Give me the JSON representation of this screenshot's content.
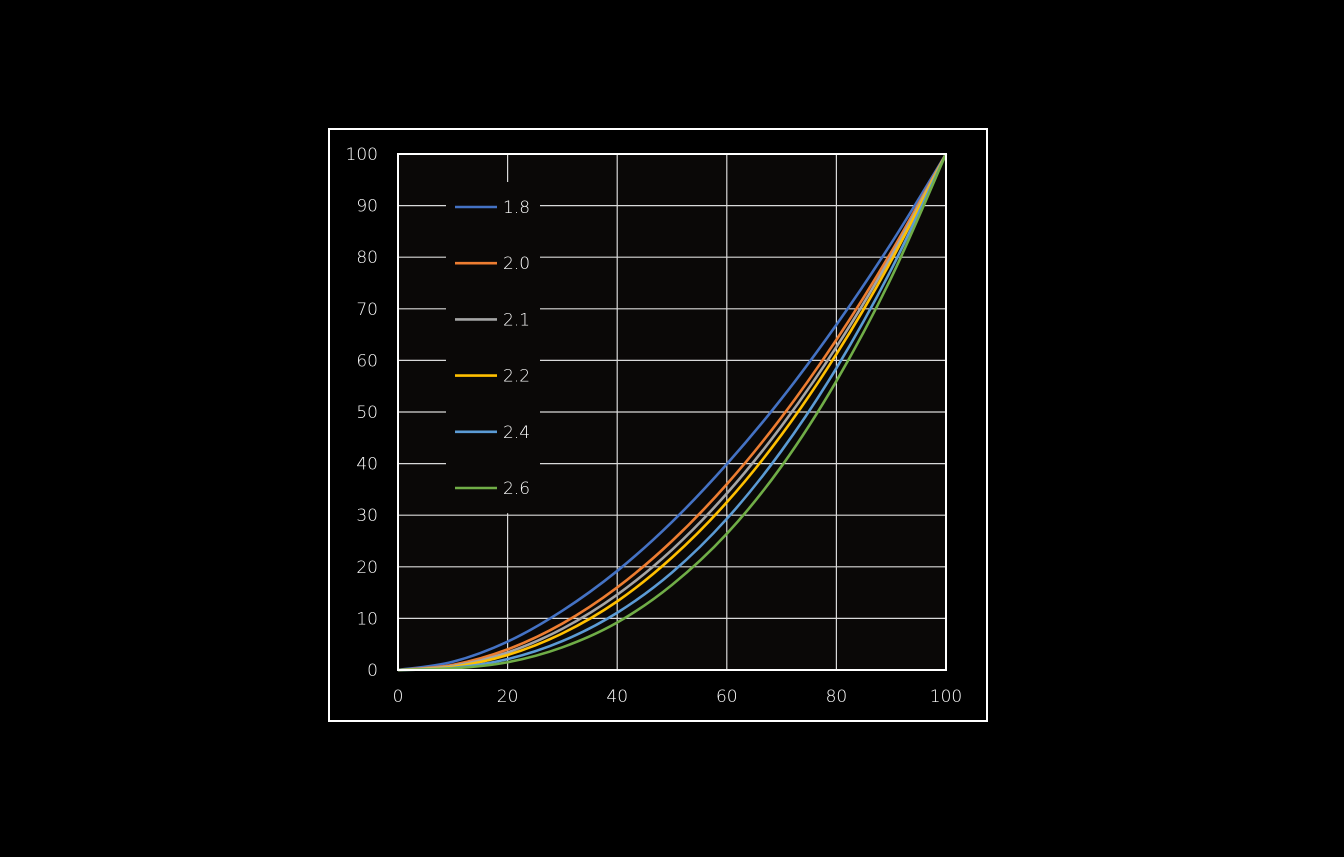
{
  "chart_data": {
    "type": "line",
    "title": "",
    "xlabel": "",
    "ylabel": "",
    "xlim": [
      0,
      100
    ],
    "ylim": [
      0,
      100
    ],
    "x_ticks": [
      "0",
      "20",
      "40",
      "60",
      "80",
      "100"
    ],
    "y_ticks": [
      "0",
      "10",
      "20",
      "30",
      "40",
      "50",
      "60",
      "70",
      "80",
      "90",
      "100"
    ],
    "grid": true,
    "legend_position": "top-left",
    "x": [
      0,
      10,
      20,
      30,
      40,
      50,
      60,
      70,
      80,
      90,
      100
    ],
    "series": [
      {
        "name": "1.8",
        "color": "#4472c4",
        "values": [
          0,
          1.6,
          5.5,
          11.5,
          19.2,
          28.7,
          39.9,
          52.6,
          66.9,
          82.7,
          100
        ]
      },
      {
        "name": "2.0",
        "color": "#ed7d31",
        "values": [
          0,
          1.0,
          4.0,
          9.0,
          16.0,
          25.0,
          36.0,
          49.0,
          64.0,
          81.0,
          100
        ]
      },
      {
        "name": "2.1",
        "color": "#a5a5a5",
        "values": [
          0,
          0.8,
          3.4,
          8.0,
          14.6,
          23.3,
          34.2,
          47.3,
          62.6,
          80.2,
          100
        ]
      },
      {
        "name": "2.2",
        "color": "#ffc000",
        "values": [
          0,
          0.6,
          2.9,
          7.1,
          13.3,
          21.8,
          32.5,
          45.6,
          61.2,
          79.3,
          100
        ]
      },
      {
        "name": "2.4",
        "color": "#5b9bd5",
        "values": [
          0,
          0.4,
          2.1,
          5.6,
          11.1,
          18.9,
          29.3,
          42.5,
          58.5,
          77.6,
          100
        ]
      },
      {
        "name": "2.6",
        "color": "#70ad47",
        "values": [
          0,
          0.3,
          1.5,
          4.4,
          9.2,
          16.5,
          26.4,
          39.5,
          56.0,
          76.0,
          100
        ]
      }
    ],
    "colors": {
      "background": "#000000",
      "plot_background": "#0a0807",
      "frame": "#ffffff",
      "grid": "#d9d9d9",
      "text": "#ffffff"
    }
  }
}
